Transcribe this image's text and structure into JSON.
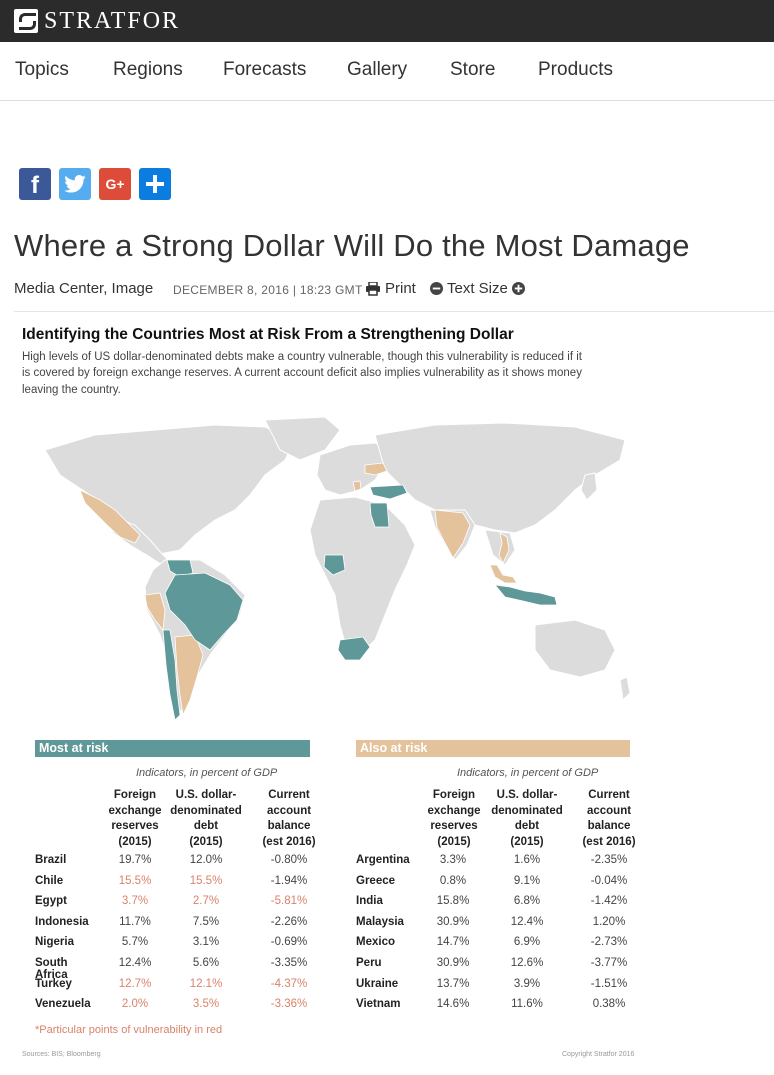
{
  "header": {
    "logo_text": "STRATFOR",
    "nav": [
      "Topics",
      "Regions",
      "Forecasts",
      "Gallery",
      "Store",
      "Products"
    ]
  },
  "share": {
    "facebook": "f",
    "googleplus": "G+",
    "colors": {
      "facebook": "#3b5998",
      "twitter": "#55acee",
      "googleplus": "#dd4b39",
      "share": "#0c7de0"
    }
  },
  "article": {
    "title": "Where a Strong Dollar Will Do the Most Damage",
    "category": "Media Center, Image",
    "date": "DECEMBER 8, 2016 | 18:23 GMT",
    "print": "Print",
    "text_size": "Text Size"
  },
  "infographic": {
    "title": "Identifying the Countries Most at Risk From a Strengthening Dollar",
    "subtitle_lines": [
      "High levels of US dollar-denominated debts make a country vulnerable, though this vulnerability is reduced if it",
      "is covered by foreign exchange reserves. A current account deficit also implies vulnerability as it shows money",
      "leaving the country."
    ],
    "colors": {
      "most": "#5e9898",
      "also": "#e3c29c",
      "land": "#dcdcdc",
      "red": "#d9826a"
    },
    "most_at_risk": {
      "heading": "Most at risk",
      "indicators": "Indicators, in percent of GDP",
      "columns": [
        [
          "Foreign",
          "exchange",
          "reserves",
          "(2015)"
        ],
        [
          "U.S. dollar-",
          "denominated",
          "debt",
          "(2015)"
        ],
        [
          "Current",
          "account",
          "balance",
          "(est 2016)"
        ]
      ],
      "rows": [
        {
          "country": "Brazil",
          "values": [
            "19.7%",
            "12.0%",
            "-0.80%"
          ],
          "red": [
            false,
            false,
            false
          ]
        },
        {
          "country": "Chile",
          "values": [
            "15.5%",
            "15.5%",
            "-1.94%"
          ],
          "red": [
            true,
            true,
            false
          ]
        },
        {
          "country": "Egypt",
          "values": [
            "3.7%",
            "2.7%",
            "-5.81%"
          ],
          "red": [
            true,
            true,
            true
          ]
        },
        {
          "country": "Indonesia",
          "values": [
            "11.7%",
            "7.5%",
            "-2.26%"
          ],
          "red": [
            false,
            false,
            false
          ]
        },
        {
          "country": "Nigeria",
          "values": [
            "5.7%",
            "3.1%",
            "-0.69%"
          ],
          "red": [
            false,
            false,
            false
          ]
        },
        {
          "country": "South Africa",
          "values": [
            "12.4%",
            "5.6%",
            "-3.35%"
          ],
          "red": [
            false,
            false,
            false
          ]
        },
        {
          "country": "Turkey",
          "values": [
            "12.7%",
            "12.1%",
            "-4.37%"
          ],
          "red": [
            true,
            true,
            true
          ]
        },
        {
          "country": "Venezuela",
          "values": [
            "2.0%",
            "3.5%",
            "-3.36%"
          ],
          "red": [
            true,
            true,
            true
          ]
        }
      ]
    },
    "also_at_risk": {
      "heading": "Also at risk",
      "indicators": "Indicators, in percent of GDP",
      "columns": [
        [
          "Foreign",
          "exchange",
          "reserves",
          "(2015)"
        ],
        [
          "U.S. dollar-",
          "denominated",
          "debt",
          "(2015)"
        ],
        [
          "Current",
          "account",
          "balance",
          "(est 2016)"
        ]
      ],
      "rows": [
        {
          "country": "Argentina",
          "values": [
            "3.3%",
            "1.6%",
            "-2.35%"
          ]
        },
        {
          "country": "Greece",
          "values": [
            "0.8%",
            "9.1%",
            "-0.04%"
          ]
        },
        {
          "country": "India",
          "values": [
            "15.8%",
            "6.8%",
            "-1.42%"
          ]
        },
        {
          "country": "Malaysia",
          "values": [
            "30.9%",
            "12.4%",
            "1.20%"
          ]
        },
        {
          "country": "Mexico",
          "values": [
            "14.7%",
            "6.9%",
            "-2.73%"
          ]
        },
        {
          "country": "Peru",
          "values": [
            "30.9%",
            "12.6%",
            "-3.77%"
          ]
        },
        {
          "country": "Ukraine",
          "values": [
            "13.7%",
            "3.9%",
            "-1.51%"
          ]
        },
        {
          "country": "Vietnam",
          "values": [
            "14.6%",
            "11.6%",
            "0.38%"
          ]
        }
      ]
    },
    "footnote": "*Particular points of vulnerability in red",
    "source": "Sources: BIS; Bloomberg",
    "copyright": "Copyright Stratfor 2016"
  }
}
